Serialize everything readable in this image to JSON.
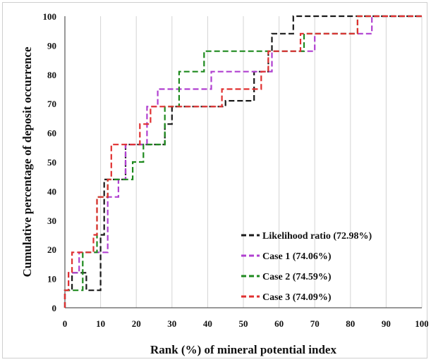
{
  "chart_data": {
    "type": "line",
    "step": true,
    "xlabel": "Rank (%) of mineral potential index",
    "ylabel": "Cumulative percentage of deposit occurrence",
    "xlim": [
      0,
      100
    ],
    "ylim": [
      0,
      100
    ],
    "xticks": [
      0,
      10,
      20,
      30,
      40,
      50,
      60,
      70,
      80,
      90,
      100
    ],
    "yticks": [
      0,
      10,
      20,
      30,
      40,
      50,
      60,
      70,
      80,
      90,
      100
    ],
    "grid": "vertical",
    "legend_position": "bottom-right",
    "series": [
      {
        "name": "Likelihood ratio (72.98%)",
        "color": "#1a1a1a",
        "points": [
          [
            0,
            0
          ],
          [
            0,
            6
          ],
          [
            2,
            6
          ],
          [
            2,
            12
          ],
          [
            6,
            12
          ],
          [
            6,
            6
          ],
          [
            10,
            6
          ],
          [
            10,
            25
          ],
          [
            11,
            25
          ],
          [
            11,
            44
          ],
          [
            15,
            44
          ],
          [
            15,
            44
          ],
          [
            17,
            44
          ],
          [
            17,
            56
          ],
          [
            22,
            56
          ],
          [
            22,
            56
          ],
          [
            28,
            56
          ],
          [
            28,
            63
          ],
          [
            30,
            63
          ],
          [
            30,
            69
          ],
          [
            33,
            69
          ],
          [
            33,
            69
          ],
          [
            45,
            69
          ],
          [
            45,
            71
          ],
          [
            53,
            71
          ],
          [
            53,
            81
          ],
          [
            57,
            81
          ],
          [
            57,
            88
          ],
          [
            58,
            88
          ],
          [
            58,
            94
          ],
          [
            64,
            94
          ],
          [
            64,
            100
          ],
          [
            83,
            100
          ],
          [
            83,
            100
          ],
          [
            100,
            100
          ]
        ]
      },
      {
        "name": "Case 1 (74.06%)",
        "color": "#b040d0",
        "points": [
          [
            0,
            0
          ],
          [
            0,
            6
          ],
          [
            1,
            6
          ],
          [
            1,
            12
          ],
          [
            4,
            12
          ],
          [
            4,
            19
          ],
          [
            9,
            19
          ],
          [
            9,
            19
          ],
          [
            12,
            19
          ],
          [
            12,
            38
          ],
          [
            15,
            38
          ],
          [
            15,
            44
          ],
          [
            17,
            44
          ],
          [
            17,
            56
          ],
          [
            23,
            56
          ],
          [
            23,
            69
          ],
          [
            26,
            69
          ],
          [
            26,
            75
          ],
          [
            33,
            75
          ],
          [
            33,
            75
          ],
          [
            41,
            75
          ],
          [
            41,
            81
          ],
          [
            58,
            81
          ],
          [
            58,
            88
          ],
          [
            66,
            88
          ],
          [
            66,
            88
          ],
          [
            70,
            88
          ],
          [
            70,
            94
          ],
          [
            82,
            94
          ],
          [
            82,
            94
          ],
          [
            86,
            94
          ],
          [
            86,
            100
          ],
          [
            100,
            100
          ]
        ]
      },
      {
        "name": "Case 2 (74.59%)",
        "color": "#1e8a1e",
        "points": [
          [
            0,
            0
          ],
          [
            0,
            6
          ],
          [
            5,
            6
          ],
          [
            5,
            19
          ],
          [
            9,
            19
          ],
          [
            9,
            38
          ],
          [
            12,
            38
          ],
          [
            12,
            44
          ],
          [
            19,
            44
          ],
          [
            19,
            50
          ],
          [
            22,
            50
          ],
          [
            22,
            56
          ],
          [
            28,
            56
          ],
          [
            28,
            69
          ],
          [
            32,
            69
          ],
          [
            32,
            81
          ],
          [
            39,
            81
          ],
          [
            39,
            88
          ],
          [
            55,
            88
          ],
          [
            55,
            88
          ],
          [
            60,
            88
          ],
          [
            60,
            88
          ],
          [
            67,
            88
          ],
          [
            67,
            94
          ],
          [
            82,
            94
          ],
          [
            82,
            100
          ],
          [
            100,
            100
          ]
        ]
      },
      {
        "name": "Case 3 (74.09%)",
        "color": "#e03030",
        "points": [
          [
            0,
            0
          ],
          [
            0,
            6
          ],
          [
            1,
            6
          ],
          [
            1,
            12
          ],
          [
            2,
            12
          ],
          [
            2,
            19
          ],
          [
            5,
            19
          ],
          [
            5,
            19
          ],
          [
            8,
            19
          ],
          [
            8,
            25
          ],
          [
            9,
            25
          ],
          [
            9,
            38
          ],
          [
            12,
            38
          ],
          [
            12,
            44
          ],
          [
            13,
            44
          ],
          [
            13,
            56
          ],
          [
            21,
            56
          ],
          [
            21,
            63
          ],
          [
            24,
            63
          ],
          [
            24,
            69
          ],
          [
            28,
            69
          ],
          [
            28,
            69
          ],
          [
            36,
            69
          ],
          [
            36,
            69
          ],
          [
            44,
            69
          ],
          [
            44,
            75
          ],
          [
            55,
            75
          ],
          [
            55,
            81
          ],
          [
            57,
            81
          ],
          [
            57,
            88
          ],
          [
            66,
            88
          ],
          [
            66,
            94
          ],
          [
            82,
            94
          ],
          [
            82,
            100
          ],
          [
            100,
            100
          ]
        ]
      }
    ]
  }
}
